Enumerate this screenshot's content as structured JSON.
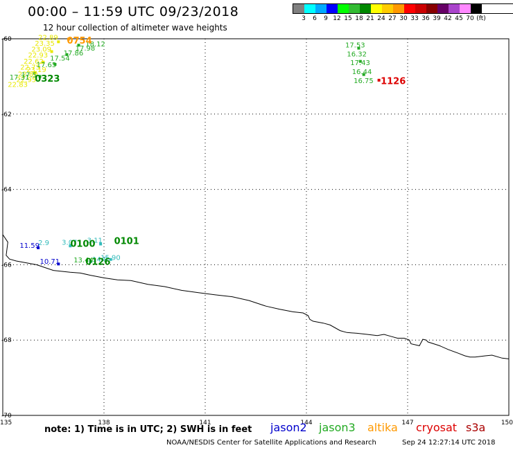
{
  "header": {
    "title": "00:00 – 11:59 UTC 09/23/2018",
    "subtitle": "12 hour collection of altimeter wave heights"
  },
  "legend": {
    "colors": [
      "#808080",
      "#00ffff",
      "#00aaff",
      "#0000ff",
      "#00ff00",
      "#33bb33",
      "#008800",
      "#ffff00",
      "#ffcc00",
      "#ff9900",
      "#ff0000",
      "#cc0000",
      "#880000",
      "#660066",
      "#aa44cc",
      "#ff88ff",
      "#000000"
    ],
    "labels": [
      "3",
      "6",
      "9",
      "12",
      "15",
      "18",
      "21",
      "24",
      "27",
      "30",
      "33",
      "36",
      "39",
      "42",
      "45",
      "70",
      "(ft)"
    ]
  },
  "axes": {
    "lat_ticks": [
      "-60",
      "-62",
      "-64",
      "-66",
      "-68",
      "-70"
    ],
    "lon_ticks": [
      "135",
      "138",
      "141",
      "144",
      "147",
      "150"
    ]
  },
  "observations": [
    {
      "text": "22.89",
      "color": "#e8e800",
      "lon": 136.05,
      "lat": -60.03
    },
    {
      "text": "23.35",
      "color": "#e8e800",
      "lon": 135.95,
      "lat": -60.18
    },
    {
      "text": "23.09",
      "color": "#e8e800",
      "lon": 135.85,
      "lat": -60.34
    },
    {
      "text": "22.93",
      "color": "#e8e800",
      "lon": 135.75,
      "lat": -60.5
    },
    {
      "text": "22.62",
      "color": "#e8e800",
      "lon": 135.62,
      "lat": -60.66
    },
    {
      "text": "22.75",
      "color": "#e8e800",
      "lon": 135.52,
      "lat": -60.82
    },
    {
      "text": "22.80",
      "color": "#e8e800",
      "lon": 135.45,
      "lat": -61.0
    },
    {
      "text": "22.95",
      "color": "#e8e800",
      "lon": 135.4,
      "lat": -61.15
    },
    {
      "text": "22.83",
      "color": "#e8e800",
      "lon": 135.15,
      "lat": -61.28
    },
    {
      "text": "23.19",
      "color": "#e8e800",
      "lon": 135.7,
      "lat": -60.88
    },
    {
      "text": "17.65",
      "color": "#22aa22",
      "lon": 136.0,
      "lat": -60.75
    },
    {
      "text": "17.54",
      "color": "#22aa22",
      "lon": 136.4,
      "lat": -60.58
    },
    {
      "text": "17.86",
      "color": "#22aa22",
      "lon": 136.8,
      "lat": -60.44
    },
    {
      "text": "17.98",
      "color": "#22aa22",
      "lon": 137.15,
      "lat": -60.31
    },
    {
      "text": "18.12",
      "color": "#22aa22",
      "lon": 137.45,
      "lat": -60.2
    },
    {
      "text": "17.31",
      "color": "#22aa22",
      "lon": 135.2,
      "lat": -61.08
    },
    {
      "text": "17.5",
      "color": "#22aa22",
      "lon": 135.55,
      "lat": -61.02
    },
    {
      "text": "17.53",
      "color": "#22aa22",
      "lon": 145.15,
      "lat": -60.23
    },
    {
      "text": "16.32",
      "color": "#22aa22",
      "lon": 145.2,
      "lat": -60.47
    },
    {
      "text": "17.43",
      "color": "#22aa22",
      "lon": 145.3,
      "lat": -60.7
    },
    {
      "text": "16.44",
      "color": "#22aa22",
      "lon": 145.35,
      "lat": -60.94
    },
    {
      "text": "16.75",
      "color": "#22aa22",
      "lon": 145.4,
      "lat": -61.18
    },
    {
      "text": "11.59",
      "color": "#0000cc",
      "lon": 135.5,
      "lat": -65.55
    },
    {
      "text": "2.9",
      "color": "#33bbbb",
      "lon": 136.05,
      "lat": -65.48
    },
    {
      "text": "3.07",
      "color": "#33bbbb",
      "lon": 136.75,
      "lat": -65.47
    },
    {
      "text": "3.11",
      "color": "#33bbbb",
      "lon": 137.5,
      "lat": -65.41
    },
    {
      "text": "10.71",
      "color": "#0000cc",
      "lon": 136.1,
      "lat": -65.97
    },
    {
      "text": "15.90",
      "color": "#33bbbb",
      "lon": 137.9,
      "lat": -65.87
    },
    {
      "text": "13.44",
      "color": "#22aa22",
      "lon": 137.1,
      "lat": -65.94
    },
    {
      "text": "14.8",
      "color": "#33bbbb",
      "lon": 137.65,
      "lat": -65.92
    }
  ],
  "time_labels": [
    {
      "text": "0754",
      "color": "#ff9900",
      "lon": 136.9,
      "lat": -60.13
    },
    {
      "text": "0323",
      "color": "#008800",
      "lon": 135.95,
      "lat": -61.14
    },
    {
      "text": "1126",
      "color": "#dd0000",
      "lon": 146.2,
      "lat": -61.2
    },
    {
      "text": "0101",
      "color": "#008800",
      "lon": 138.3,
      "lat": -65.45
    },
    {
      "text": "0100",
      "color": "#008800",
      "lon": 137.0,
      "lat": -65.52
    },
    {
      "text": "0126",
      "color": "#008800",
      "lon": 137.45,
      "lat": -66.0
    }
  ],
  "track_markers": [
    {
      "color": "#ff9900",
      "lon": 136.95,
      "lat": -60.01
    },
    {
      "color": "#e8e800",
      "lon": 136.65,
      "lat": -60.08
    },
    {
      "color": "#e8e800",
      "lon": 136.45,
      "lat": -60.34
    },
    {
      "color": "#e8e800",
      "lon": 136.2,
      "lat": -60.62
    },
    {
      "color": "#e8e800",
      "lon": 135.95,
      "lat": -60.9
    },
    {
      "color": "#22aa22",
      "lon": 137.25,
      "lat": -60.17
    },
    {
      "color": "#22aa22",
      "lon": 136.9,
      "lat": -60.42
    },
    {
      "color": "#22aa22",
      "lon": 136.55,
      "lat": -60.68
    },
    {
      "color": "#22aa22",
      "lon": 136.1,
      "lat": -61.0
    },
    {
      "color": "#22aa22",
      "lon": 145.55,
      "lat": -60.25
    },
    {
      "color": "#22aa22",
      "lon": 145.6,
      "lat": -60.6
    },
    {
      "color": "#22aa22",
      "lon": 145.7,
      "lat": -60.95
    },
    {
      "color": "#dd0000",
      "lon": 146.15,
      "lat": -61.1
    },
    {
      "color": "#0000cc",
      "lon": 136.05,
      "lat": -65.55
    },
    {
      "color": "#33bbbb",
      "lon": 137.0,
      "lat": -65.5
    },
    {
      "color": "#33bbbb",
      "lon": 137.9,
      "lat": -65.45
    },
    {
      "color": "#0000cc",
      "lon": 136.65,
      "lat": -65.98
    },
    {
      "color": "#33bbbb",
      "lon": 137.6,
      "lat": -65.92
    },
    {
      "color": "#33bbbb",
      "lon": 138.2,
      "lat": -65.86
    }
  ],
  "coastline": [
    [
      135.0,
      -65.2
    ],
    [
      135.15,
      -65.4
    ],
    [
      135.1,
      -65.75
    ],
    [
      135.2,
      -65.85
    ],
    [
      135.4,
      -65.9
    ],
    [
      136.0,
      -66.0
    ],
    [
      136.5,
      -66.15
    ],
    [
      137.0,
      -66.2
    ],
    [
      137.3,
      -66.22
    ],
    [
      137.6,
      -66.28
    ],
    [
      138.0,
      -66.35
    ],
    [
      138.4,
      -66.4
    ],
    [
      138.8,
      -66.42
    ],
    [
      139.3,
      -66.52
    ],
    [
      139.8,
      -66.58
    ],
    [
      140.3,
      -66.68
    ],
    [
      140.8,
      -66.74
    ],
    [
      141.3,
      -66.8
    ],
    [
      141.8,
      -66.85
    ],
    [
      142.3,
      -66.95
    ],
    [
      142.8,
      -67.1
    ],
    [
      143.2,
      -67.18
    ],
    [
      143.6,
      -67.25
    ],
    [
      143.9,
      -67.28
    ],
    [
      144.05,
      -67.35
    ],
    [
      144.1,
      -67.45
    ],
    [
      144.2,
      -67.5
    ],
    [
      144.5,
      -67.55
    ],
    [
      144.7,
      -67.6
    ],
    [
      145.0,
      -67.75
    ],
    [
      145.2,
      -67.8
    ],
    [
      145.5,
      -67.82
    ],
    [
      145.8,
      -67.85
    ],
    [
      146.1,
      -67.88
    ],
    [
      146.3,
      -67.85
    ],
    [
      146.5,
      -67.9
    ],
    [
      146.7,
      -67.95
    ],
    [
      146.9,
      -67.95
    ],
    [
      147.05,
      -68.0
    ],
    [
      147.1,
      -68.1
    ],
    [
      147.35,
      -68.15
    ],
    [
      147.45,
      -67.98
    ],
    [
      147.55,
      -68.0
    ],
    [
      147.6,
      -68.05
    ],
    [
      147.95,
      -68.15
    ],
    [
      148.2,
      -68.25
    ],
    [
      148.5,
      -68.35
    ],
    [
      148.7,
      -68.42
    ],
    [
      148.85,
      -68.45
    ],
    [
      149.0,
      -68.45
    ],
    [
      149.3,
      -68.42
    ],
    [
      149.5,
      -68.4
    ],
    [
      149.8,
      -68.48
    ],
    [
      150.0,
      -68.5
    ]
  ],
  "footer": {
    "note": "note:  1) Time is in UTC;  2) SWH is in feet",
    "satellites": [
      {
        "name": "jason2",
        "color": "#0000cc"
      },
      {
        "name": "jason3",
        "color": "#22aa22"
      },
      {
        "name": "altika",
        "color": "#ff9900"
      },
      {
        "name": "cryosat",
        "color": "#dd0000"
      },
      {
        "name": "s3a",
        "color": "#aa0000"
      }
    ],
    "credit": "NOAA/NESDIS Center for Satellite Applications and Research",
    "timestamp": "Sep 24 12:27:14 UTC 2018"
  }
}
